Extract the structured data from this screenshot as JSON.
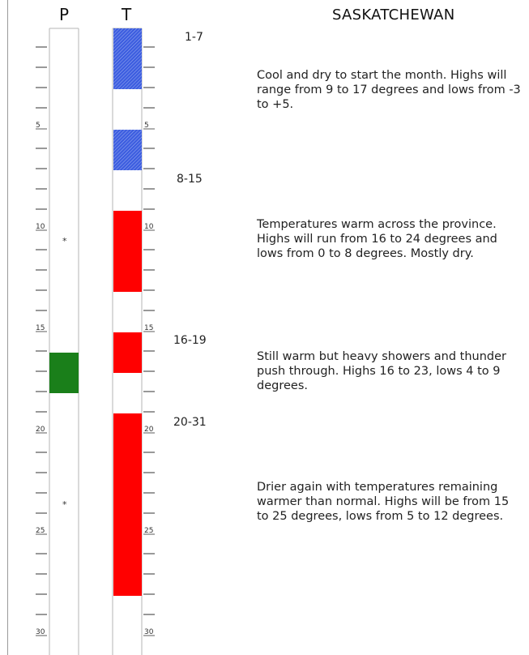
{
  "title": "SASKATCHEWAN",
  "columns": {
    "p_label": "P",
    "t_label": "T"
  },
  "chart_data": {
    "type": "calendar-strip",
    "days": 31,
    "tick_labels": [
      "5",
      "10",
      "15",
      "20",
      "25",
      "30"
    ],
    "precip": {
      "bars": [
        {
          "start": 17,
          "end": 18,
          "color": "#1a7f1a"
        }
      ],
      "stars": [
        11,
        24
      ]
    },
    "temperature": {
      "cool_color": "#3d5ee0",
      "warm_color": "#ff0000",
      "bars": [
        {
          "start": 1,
          "end": 3,
          "kind": "cool"
        },
        {
          "start": 6,
          "end": 7,
          "kind": "cool"
        },
        {
          "start": 10,
          "end": 13,
          "kind": "warm"
        },
        {
          "start": 16,
          "end": 17,
          "kind": "warm"
        },
        {
          "start": 20,
          "end": 21,
          "kind": "warm"
        },
        {
          "start": 22,
          "end": 28,
          "kind": "warm"
        }
      ]
    }
  },
  "periods": [
    {
      "label": "1-7",
      "text": "Cool and dry to start the month.  Highs will range from 9 to 17 degrees and lows from -3 to +5."
    },
    {
      "label": "8-15",
      "text": "Temperatures warm across the province. Highs will run from 16 to 24 degrees and lows from 0 to 8 degrees. Mostly dry."
    },
    {
      "label": "16-19",
      "text": "Still warm but heavy showers and thunder push through. Highs 16 to 23, lows 4 to 9 degrees."
    },
    {
      "label": "20-31",
      "text": "Drier again with temperatures remaining warmer than normal. Highs will be from 15 to 25 degrees, lows from 5 to 12 degrees."
    }
  ]
}
